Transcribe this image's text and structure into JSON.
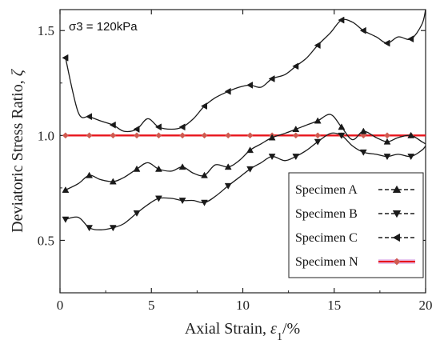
{
  "chart_data": {
    "type": "line",
    "title": "",
    "annotation": "σ3 = 120kPa",
    "xlabel_main": "Axial Strain, ",
    "xlabel_symbol": "ε",
    "xlabel_sub": "1",
    "xlabel_unit": "/%",
    "ylabel_main": "Deviatoric Stress Ratio, ",
    "ylabel_symbol": "ζ",
    "xlim": [
      0,
      20
    ],
    "ylim": [
      0.25,
      1.6
    ],
    "x_ticks": [
      0,
      5,
      10,
      15,
      20
    ],
    "x_tick_labels": [
      "0",
      "5",
      "10",
      "15",
      "20"
    ],
    "y_ticks": [
      0.5,
      1.0,
      1.5
    ],
    "y_tick_labels": [
      "0.5",
      "1.0",
      "1.5"
    ],
    "grid": false,
    "legend_position": "bottom-right",
    "series": [
      {
        "name": "Specimen A",
        "marker": "triangle-up",
        "color": "#1a1a1a",
        "x": [
          0.3,
          1.0,
          1.6,
          2.2,
          2.9,
          3.5,
          4.2,
          4.8,
          5.4,
          6.1,
          6.7,
          7.3,
          7.9,
          8.5,
          9.2,
          9.8,
          10.4,
          11.0,
          11.6,
          12.3,
          12.9,
          13.5,
          14.1,
          14.8,
          15.4,
          16.0,
          16.6,
          17.3,
          17.9,
          18.5,
          19.2,
          19.8,
          20.0
        ],
        "y": [
          0.74,
          0.77,
          0.81,
          0.79,
          0.78,
          0.8,
          0.84,
          0.87,
          0.84,
          0.83,
          0.85,
          0.82,
          0.81,
          0.86,
          0.85,
          0.88,
          0.93,
          0.96,
          0.99,
          1.01,
          1.03,
          1.05,
          1.07,
          1.1,
          1.04,
          0.98,
          1.02,
          0.99,
          0.97,
          0.99,
          1.0,
          0.97,
          0.96
        ]
      },
      {
        "name": "Specimen B",
        "marker": "triangle-down",
        "color": "#1a1a1a",
        "x": [
          0.3,
          1.0,
          1.6,
          2.2,
          2.9,
          3.5,
          4.2,
          4.8,
          5.4,
          6.1,
          6.7,
          7.3,
          7.9,
          8.5,
          9.2,
          9.8,
          10.4,
          11.0,
          11.6,
          12.3,
          12.9,
          13.5,
          14.1,
          14.8,
          15.4,
          16.0,
          16.6,
          17.3,
          17.9,
          18.5,
          19.2,
          19.8,
          20.0
        ],
        "y": [
          0.6,
          0.61,
          0.56,
          0.55,
          0.56,
          0.58,
          0.63,
          0.67,
          0.7,
          0.7,
          0.69,
          0.69,
          0.68,
          0.71,
          0.76,
          0.8,
          0.84,
          0.87,
          0.9,
          0.88,
          0.9,
          0.93,
          0.97,
          1.01,
          1.0,
          0.95,
          0.92,
          0.91,
          0.9,
          0.91,
          0.9,
          0.93,
          0.95
        ]
      },
      {
        "name": "Specimen C",
        "marker": "triangle-left",
        "color": "#1a1a1a",
        "x": [
          0.3,
          1.0,
          1.6,
          2.2,
          2.9,
          3.5,
          4.2,
          4.8,
          5.4,
          6.1,
          6.7,
          7.3,
          7.9,
          8.5,
          9.2,
          9.8,
          10.4,
          11.0,
          11.6,
          12.3,
          12.9,
          13.5,
          14.1,
          14.8,
          15.4,
          16.0,
          16.6,
          17.3,
          17.9,
          18.5,
          19.2,
          19.8,
          20.0
        ],
        "y": [
          1.37,
          1.11,
          1.09,
          1.07,
          1.05,
          1.02,
          1.03,
          1.08,
          1.04,
          1.03,
          1.04,
          1.08,
          1.14,
          1.18,
          1.21,
          1.23,
          1.24,
          1.23,
          1.27,
          1.29,
          1.33,
          1.37,
          1.43,
          1.49,
          1.55,
          1.54,
          1.5,
          1.47,
          1.44,
          1.47,
          1.46,
          1.53,
          1.6
        ]
      },
      {
        "name": "Specimen N",
        "marker": "diamond",
        "color": "#e8141b",
        "markerColor": "#d05a50",
        "x": [
          0.3,
          1.6,
          2.9,
          4.2,
          5.4,
          6.7,
          7.9,
          9.2,
          10.4,
          11.6,
          12.9,
          14.1,
          15.4,
          16.6,
          17.9,
          19.2,
          20.0
        ],
        "y": [
          1.0,
          1.0,
          1.0,
          1.0,
          1.0,
          1.0,
          1.0,
          1.0,
          1.0,
          1.0,
          1.0,
          1.0,
          1.0,
          1.0,
          1.0,
          1.0,
          1.0
        ]
      }
    ]
  }
}
